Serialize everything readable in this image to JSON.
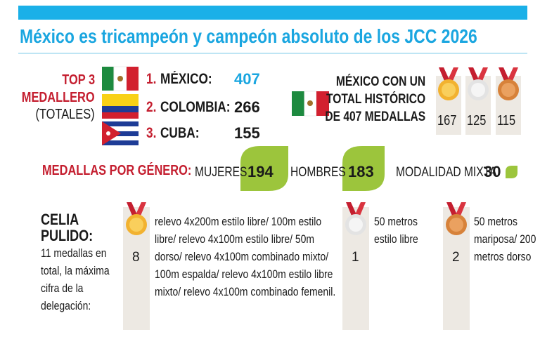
{
  "header": {
    "title": "México es tricampeón y campeón absoluto de los JCC 2026"
  },
  "top3": {
    "label": [
      "TOP 3",
      "MEDALLERO",
      "(TOTALES)"
    ],
    "ranking": [
      {
        "rank": "1.",
        "name": "MÉXICO:",
        "total": 407
      },
      {
        "rank": "2.",
        "name": "COLOMBIA:",
        "total": 266
      },
      {
        "rank": "3.",
        "name": "CUBA:",
        "total": 155
      }
    ]
  },
  "historic": {
    "text": [
      "MÉXICO CON UN",
      "TOTAL HISTÓRICO",
      "DE 407 MEDALLAS"
    ],
    "medals": [
      167,
      125,
      115
    ]
  },
  "gender": {
    "label": "MEDALLAS POR GÉNERO:",
    "items": [
      {
        "label": "MUJERES",
        "value": 194
      },
      {
        "label": "HOMBRES",
        "value": 183
      },
      {
        "label": "MODALIDAD MIXTA",
        "value": 30
      }
    ]
  },
  "athlete": {
    "name": [
      "CELIA",
      "PULIDO:"
    ],
    "description": "11 medallas en total, la máxima cifra de la delegación:",
    "medals": [
      {
        "count": 8,
        "events": "relevo 4x200m estilo libre/ 100m estilo libre/ relevo 4x100m estilo libre/ 50m dorso/ relevo 4x100m combinado mixto/ 100m espalda/ relevo 4x100m estilo libre mixto/ relevo 4x100m combinado femenil."
      },
      {
        "count": 1,
        "events": "50 metros estilo libre"
      },
      {
        "count": 2,
        "events": "50 metros mariposa/ 200 metros dorso"
      }
    ]
  }
}
